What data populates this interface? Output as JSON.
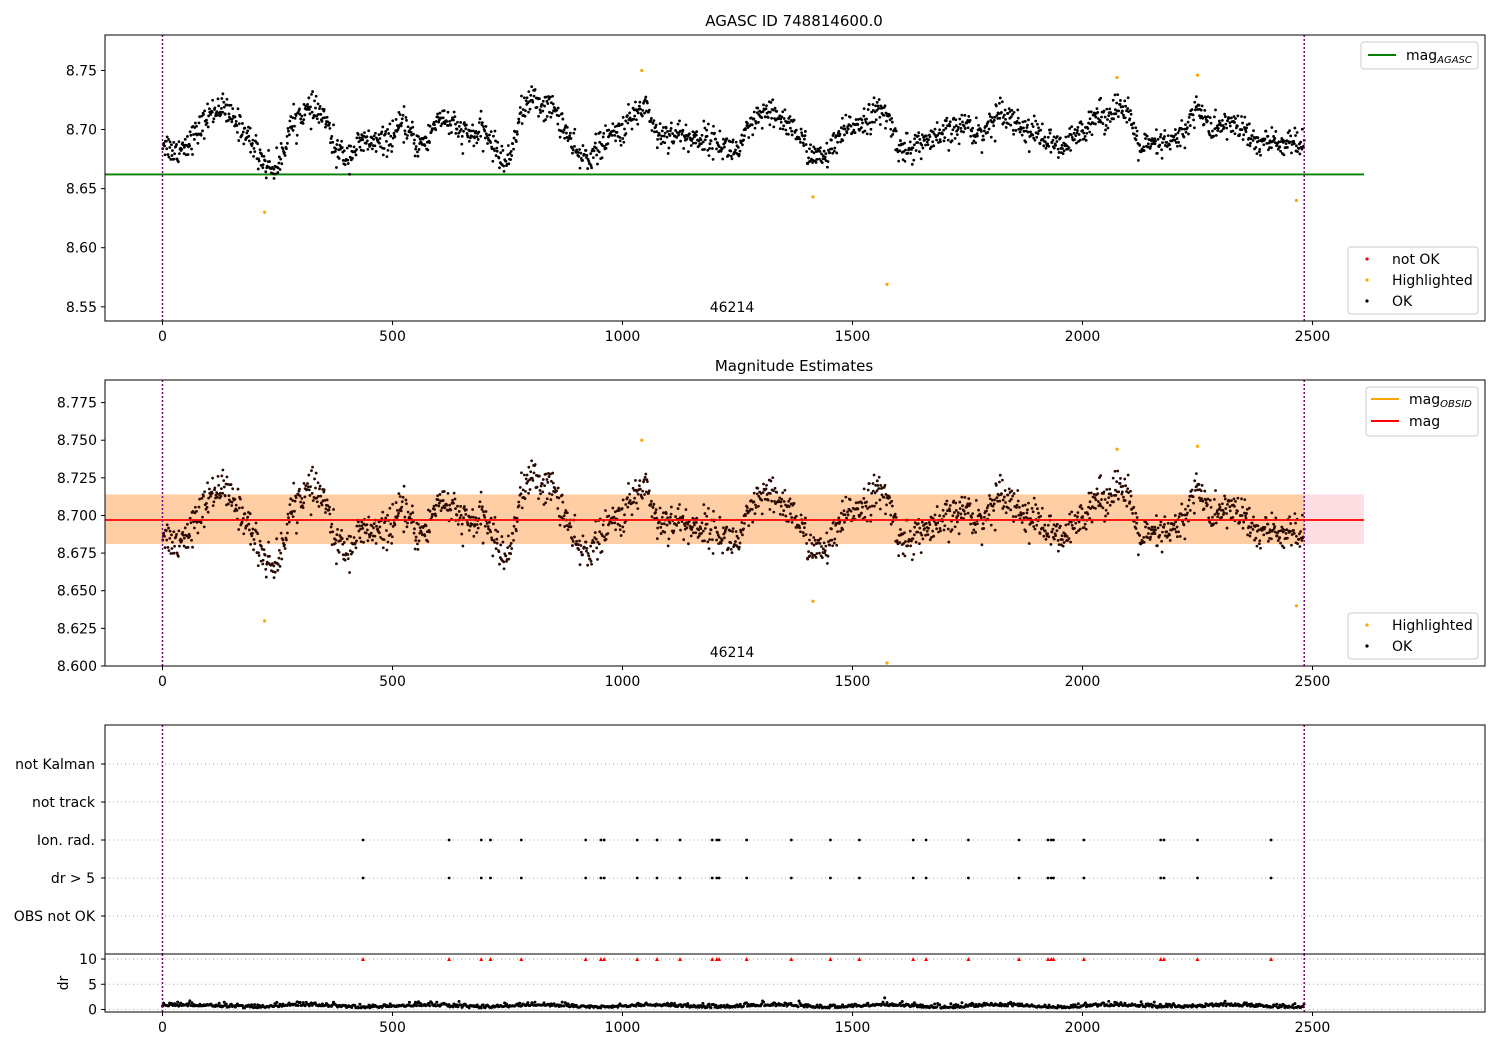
{
  "chart_data": [
    {
      "id": "p1",
      "type": "scatter",
      "title": "AGASC ID 748814600.0",
      "annotation": "46214",
      "xlim": [
        -125,
        2875
      ],
      "ylim": [
        8.538,
        8.78
      ],
      "xticks": [
        0,
        500,
        1000,
        1500,
        2000,
        2500
      ],
      "xticklabels": [
        "0",
        "500",
        "1000",
        "1500",
        "2000",
        "2500"
      ],
      "yticks": [
        8.55,
        8.6,
        8.65,
        8.7,
        8.75
      ],
      "yticklabels": [
        "8.55",
        "8.60",
        "8.65",
        "8.70",
        "8.75"
      ],
      "vlines": [
        0,
        2482
      ],
      "hline": {
        "name": "mag_AGASC",
        "y": 8.662,
        "x": [
          -125,
          2612
        ],
        "color": "#008000"
      },
      "legend_top": [
        {
          "label": "mag",
          "sub": "AGASC",
          "color": "#008000"
        }
      ],
      "legend_bottom": [
        {
          "label": "not OK",
          "color": "#ff0000"
        },
        {
          "label": "Highlighted",
          "color": "#ffa500"
        },
        {
          "label": "OK",
          "color": "#000000"
        }
      ],
      "highlighted": [
        [
          222,
          8.63
        ],
        [
          1042,
          8.75
        ],
        [
          1414,
          8.643
        ],
        [
          1575,
          8.569
        ],
        [
          2075,
          8.744
        ],
        [
          2250,
          8.746
        ],
        [
          2465,
          8.64
        ]
      ],
      "trend": [
        [
          0,
          8.69
        ],
        [
          25,
          8.681
        ],
        [
          50,
          8.688
        ],
        [
          75,
          8.697
        ],
        [
          100,
          8.712
        ],
        [
          125,
          8.72
        ],
        [
          150,
          8.71
        ],
        [
          175,
          8.7
        ],
        [
          200,
          8.685
        ],
        [
          225,
          8.67
        ],
        [
          250,
          8.667
        ],
        [
          275,
          8.7
        ],
        [
          300,
          8.714
        ],
        [
          325,
          8.716
        ],
        [
          350,
          8.712
        ],
        [
          375,
          8.683
        ],
        [
          400,
          8.677
        ],
        [
          425,
          8.687
        ],
        [
          450,
          8.69
        ],
        [
          475,
          8.688
        ],
        [
          500,
          8.695
        ],
        [
          525,
          8.705
        ],
        [
          550,
          8.688
        ],
        [
          575,
          8.69
        ],
        [
          600,
          8.712
        ],
        [
          625,
          8.705
        ],
        [
          650,
          8.697
        ],
        [
          675,
          8.695
        ],
        [
          700,
          8.698
        ],
        [
          725,
          8.683
        ],
        [
          750,
          8.67
        ],
        [
          775,
          8.71
        ],
        [
          800,
          8.727
        ],
        [
          825,
          8.72
        ],
        [
          850,
          8.718
        ],
        [
          875,
          8.7
        ],
        [
          900,
          8.678
        ],
        [
          925,
          8.677
        ],
        [
          950,
          8.685
        ],
        [
          975,
          8.695
        ],
        [
          1000,
          8.7
        ],
        [
          1025,
          8.712
        ],
        [
          1050,
          8.722
        ],
        [
          1075,
          8.695
        ],
        [
          1100,
          8.697
        ],
        [
          1125,
          8.696
        ],
        [
          1150,
          8.692
        ],
        [
          1175,
          8.693
        ],
        [
          1200,
          8.69
        ],
        [
          1225,
          8.685
        ],
        [
          1250,
          8.682
        ],
        [
          1275,
          8.7
        ],
        [
          1300,
          8.712
        ],
        [
          1325,
          8.712
        ],
        [
          1350,
          8.708
        ],
        [
          1375,
          8.7
        ],
        [
          1400,
          8.684
        ],
        [
          1425,
          8.675
        ],
        [
          1450,
          8.68
        ],
        [
          1475,
          8.695
        ],
        [
          1500,
          8.704
        ],
        [
          1525,
          8.708
        ],
        [
          1550,
          8.715
        ],
        [
          1575,
          8.712
        ],
        [
          1600,
          8.686
        ],
        [
          1625,
          8.683
        ],
        [
          1650,
          8.69
        ],
        [
          1675,
          8.69
        ],
        [
          1700,
          8.697
        ],
        [
          1725,
          8.7
        ],
        [
          1750,
          8.705
        ],
        [
          1775,
          8.695
        ],
        [
          1800,
          8.705
        ],
        [
          1825,
          8.718
        ],
        [
          1850,
          8.708
        ],
        [
          1875,
          8.7
        ],
        [
          1900,
          8.697
        ],
        [
          1925,
          8.69
        ],
        [
          1950,
          8.683
        ],
        [
          1975,
          8.69
        ],
        [
          2000,
          8.7
        ],
        [
          2025,
          8.712
        ],
        [
          2050,
          8.71
        ],
        [
          2075,
          8.722
        ],
        [
          2100,
          8.71
        ],
        [
          2125,
          8.685
        ],
        [
          2150,
          8.686
        ],
        [
          2175,
          8.688
        ],
        [
          2200,
          8.69
        ],
        [
          2225,
          8.7
        ],
        [
          2250,
          8.722
        ],
        [
          2275,
          8.7
        ],
        [
          2300,
          8.703
        ],
        [
          2325,
          8.705
        ],
        [
          2350,
          8.7
        ],
        [
          2375,
          8.688
        ],
        [
          2400,
          8.69
        ],
        [
          2425,
          8.688
        ],
        [
          2450,
          8.69
        ],
        [
          2482,
          8.685
        ]
      ]
    },
    {
      "id": "p2",
      "type": "scatter",
      "title": "Magnitude Estimates",
      "annotation": "46214",
      "xlim": [
        -125,
        2875
      ],
      "ylim": [
        8.6,
        8.79
      ],
      "xticks": [
        0,
        500,
        1000,
        1500,
        2000,
        2500
      ],
      "xticklabels": [
        "0",
        "500",
        "1000",
        "1500",
        "2000",
        "2500"
      ],
      "yticks": [
        8.6,
        8.625,
        8.65,
        8.675,
        8.7,
        8.725,
        8.75,
        8.775
      ],
      "yticklabels": [
        "8.600",
        "8.625",
        "8.650",
        "8.675",
        "8.700",
        "8.725",
        "8.750",
        "8.775"
      ],
      "vlines": [
        0,
        2482
      ],
      "mag_line": {
        "y": 8.697,
        "x": [
          -125,
          2612
        ],
        "color": "#ff0000"
      },
      "band_obsid": {
        "y": [
          8.681,
          8.714
        ],
        "x": [
          -125,
          2482
        ],
        "color": "#ffa500"
      },
      "band_mag": {
        "y": [
          8.681,
          8.714
        ],
        "x": [
          -125,
          2612
        ],
        "color": "#ff9999"
      },
      "legend_top": [
        {
          "label": "mag",
          "sub": "OBSID",
          "color": "#ffa500"
        },
        {
          "label": "mag",
          "sub": "",
          "color": "#ff0000"
        }
      ],
      "legend_bottom": [
        {
          "label": "Highlighted",
          "color": "#ffa500"
        },
        {
          "label": "OK",
          "color": "#000000"
        }
      ],
      "highlighted": [
        [
          222,
          8.63
        ],
        [
          1042,
          8.75
        ],
        [
          1414,
          8.643
        ],
        [
          1575,
          8.602
        ],
        [
          2075,
          8.744
        ],
        [
          2250,
          8.746
        ],
        [
          2465,
          8.64
        ]
      ]
    },
    {
      "id": "p3",
      "type": "scatter",
      "title": "",
      "xlim": [
        -125,
        2875
      ],
      "categories": [
        "not Kalman",
        "not track",
        "Ion. rad.",
        "dr > 5",
        "OBS not OK"
      ],
      "vlines": [
        0,
        2482
      ],
      "flag_x": [
        436,
        623,
        693,
        713,
        780,
        920,
        953,
        960,
        1032,
        1075,
        1125,
        1195,
        1205,
        1210,
        1270,
        1367,
        1452,
        1515,
        1632,
        1660,
        1752,
        1862,
        1925,
        1932,
        1937,
        2003,
        2170,
        2177,
        2250,
        2410
      ]
    },
    {
      "id": "p4",
      "type": "scatter",
      "title": "",
      "ylabel": "dr",
      "xlim": [
        -125,
        2875
      ],
      "ylim": [
        -0.5,
        11
      ],
      "yticks": [
        0,
        5,
        10
      ],
      "yticklabels": [
        "0",
        "5",
        "10"
      ],
      "xticks": [
        0,
        500,
        1000,
        1500,
        2000,
        2500
      ],
      "xticklabels": [
        "0",
        "500",
        "1000",
        "1500",
        "2000",
        "2500"
      ],
      "vlines": [
        0,
        2482
      ],
      "hline": 10
    }
  ]
}
